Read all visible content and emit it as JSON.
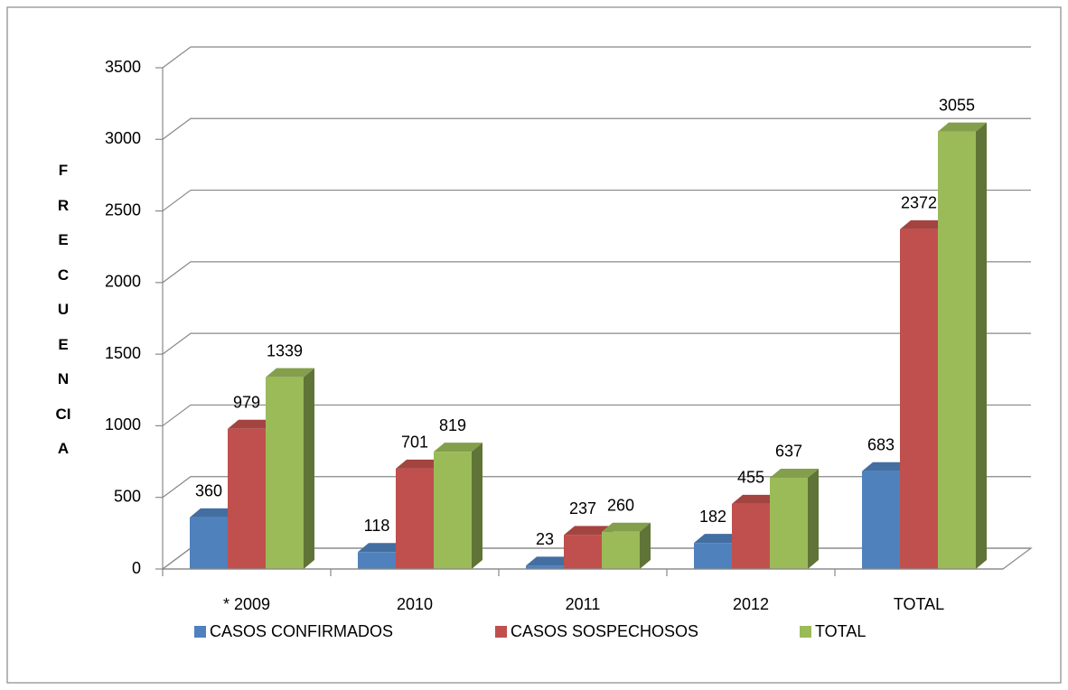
{
  "chart_data": {
    "type": "bar3d",
    "y_axis_label": "FRECUENCIA",
    "categories": [
      "* 2009",
      "2010",
      "2011",
      "2012",
      "TOTAL"
    ],
    "series": [
      {
        "name": "CASOS CONFIRMADOS",
        "color": "#4f81bd",
        "values": [
          360,
          118,
          23,
          182,
          683
        ]
      },
      {
        "name": "CASOS SOSPECHOSOS",
        "color": "#c0504d",
        "values": [
          979,
          701,
          237,
          455,
          2372
        ]
      },
      {
        "name": "TOTAL",
        "color": "#9bbb59",
        "values": [
          1339,
          819,
          260,
          637,
          3055
        ]
      }
    ],
    "ylim": [
      0,
      3500
    ],
    "yticks": [
      0,
      500,
      1000,
      1500,
      2000,
      2500,
      3000,
      3500
    ],
    "grid": true,
    "legend": "bottom"
  }
}
